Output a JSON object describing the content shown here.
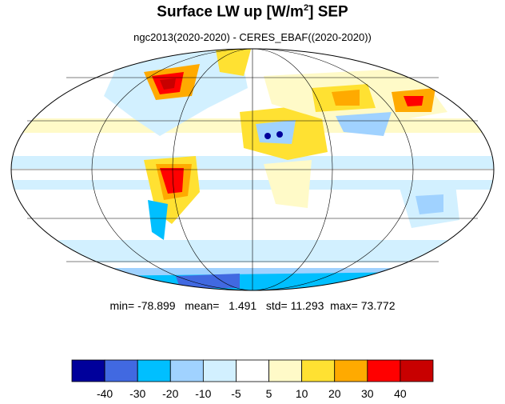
{
  "title": {
    "main": "Surface LW up [W/m",
    "sup": "2",
    "end": "]  SEP"
  },
  "subtitle": "ngc2013(2020-2020) - CERES_EBAF((2020-2020))",
  "stats": {
    "min_label": "min=",
    "min": "-78.899",
    "mean_label": "mean=",
    "mean": "1.491",
    "std_label": "std=",
    "std": "11.293",
    "max_label": "max=",
    "max": "73.772"
  },
  "colorbar": {
    "colors": [
      "#00009b",
      "#4169e1",
      "#00bfff",
      "#a0d2ff",
      "#d2f0ff",
      "#ffffff",
      "#fffac8",
      "#ffe132",
      "#ffaa00",
      "#ff0000",
      "#c80000"
    ],
    "labels": [
      "-40",
      "-30",
      "-20",
      "-10",
      "-5",
      "5",
      "10",
      "20",
      "30",
      "40"
    ]
  },
  "map": {
    "projection": "mollweide",
    "grid": true
  }
}
